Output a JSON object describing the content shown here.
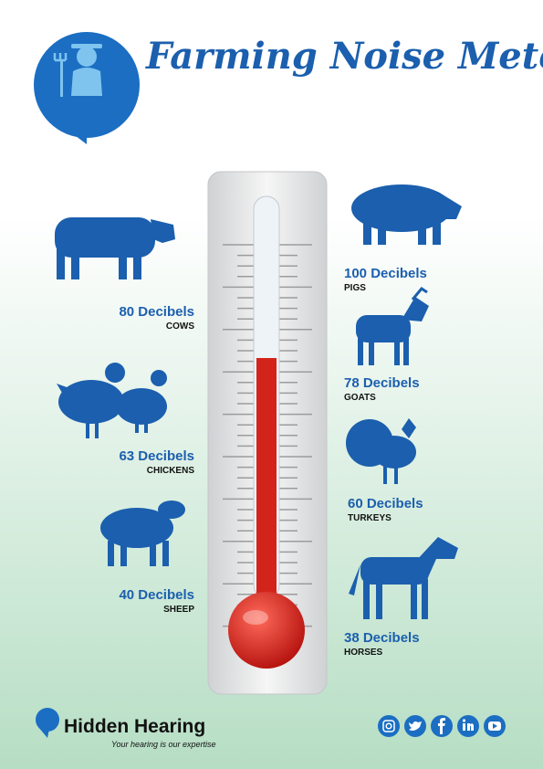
{
  "header": {
    "title": "Farming Noise Meter"
  },
  "left_animals": [
    {
      "level": "80 Decibels",
      "name": "COWS"
    },
    {
      "level": "63 Decibels",
      "name": "CHICKENS"
    },
    {
      "level": "40 Decibels",
      "name": "SHEEP"
    }
  ],
  "right_animals": [
    {
      "level": "100 Decibels",
      "name": "PIGS"
    },
    {
      "level": "78 Decibels",
      "name": "GOATS"
    },
    {
      "level": "60 Decibels",
      "name": "TURKEYS"
    },
    {
      "level": "38 Decibels",
      "name": "HORSES"
    }
  ],
  "footer": {
    "brand": "Hidden Hearing",
    "tagline": "Your hearing is our expertise"
  }
}
